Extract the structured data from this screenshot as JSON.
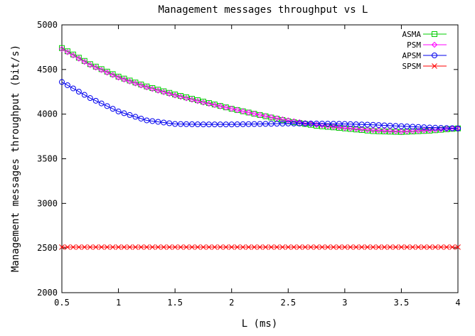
{
  "chart_data": {
    "type": "line",
    "title": "Management messages throughput vs L",
    "xlabel": "L (ms)",
    "ylabel": "Management messages throughput (bit/s)",
    "xlim": [
      0.5,
      4
    ],
    "ylim": [
      2000,
      5000
    ],
    "xticks": [
      "0.5",
      "1",
      "1.5",
      "2",
      "2.5",
      "3",
      "3.5",
      "4"
    ],
    "yticks": [
      "2000",
      "2500",
      "3000",
      "3500",
      "4000",
      "4500",
      "5000"
    ],
    "legend_position": "top-right",
    "grid": false,
    "series": [
      {
        "name": "ASMA",
        "color": "#00cc00",
        "marker": "square",
        "x": [
          0.5,
          0.75,
          1.0,
          1.25,
          1.5,
          1.75,
          2.0,
          2.25,
          2.5,
          2.75,
          3.0,
          3.25,
          3.5,
          3.75,
          4.0
        ],
        "y": [
          4740,
          4560,
          4420,
          4310,
          4220,
          4140,
          4060,
          3990,
          3920,
          3870,
          3840,
          3810,
          3800,
          3815,
          3840
        ]
      },
      {
        "name": "PSM",
        "color": "#ff00ff",
        "marker": "diamond",
        "x": [
          0.5,
          0.75,
          1.0,
          1.25,
          1.5,
          1.75,
          2.0,
          2.25,
          2.5,
          2.75,
          3.0,
          3.25,
          3.5,
          3.75,
          4.0
        ],
        "y": [
          4730,
          4550,
          4410,
          4300,
          4210,
          4130,
          4060,
          3990,
          3930,
          3880,
          3845,
          3820,
          3805,
          3820,
          3840
        ]
      },
      {
        "name": "APSM",
        "color": "#0000ee",
        "marker": "circle",
        "x": [
          0.5,
          0.75,
          1.0,
          1.25,
          1.5,
          1.75,
          2.0,
          2.25,
          2.5,
          2.75,
          3.0,
          3.25,
          3.5,
          3.75,
          4.0
        ],
        "y": [
          4360,
          4180,
          4030,
          3930,
          3890,
          3885,
          3885,
          3890,
          3895,
          3895,
          3890,
          3880,
          3865,
          3850,
          3840
        ]
      },
      {
        "name": "SPSM",
        "color": "#ff0000",
        "marker": "cross",
        "x": [
          0.5,
          0.75,
          1.0,
          1.25,
          1.5,
          1.75,
          2.0,
          2.25,
          2.5,
          2.75,
          3.0,
          3.25,
          3.5,
          3.75,
          4.0
        ],
        "y": [
          2510,
          2510,
          2510,
          2510,
          2510,
          2510,
          2510,
          2510,
          2510,
          2510,
          2510,
          2510,
          2510,
          2510,
          2510
        ]
      }
    ]
  }
}
